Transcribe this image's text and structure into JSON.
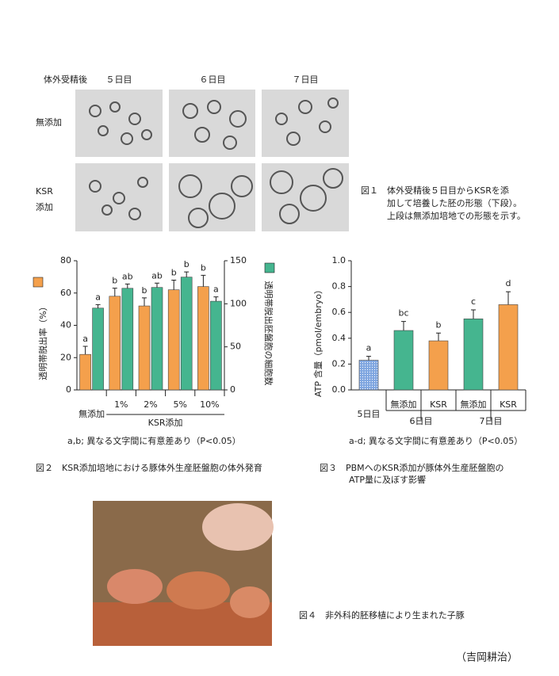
{
  "figure1": {
    "header": "体外受精後",
    "days": [
      "５日目",
      "６日目",
      "７日目"
    ],
    "rows": [
      [
        "無添加"
      ],
      [
        "KSR",
        "添加"
      ]
    ],
    "caption": [
      "図１　体外受精後５日目からKSRを添",
      "加して培養した胚の形態（下段）。",
      "上段は無添加培地での形態を示す。"
    ]
  },
  "chart_data": [
    {
      "type": "bar",
      "ylabel": "透明帯脱出率（%）",
      "y2label": "透明帯脱出胚盤胞の細胞数",
      "categories": [
        "無添加",
        "1%",
        "2%",
        "5%",
        "10%"
      ],
      "group_label": "KSR添加",
      "ylim": [
        0,
        80
      ],
      "yticks": [
        0,
        20,
        40,
        60,
        80
      ],
      "y2lim": [
        0,
        150
      ],
      "y2ticks": [
        0,
        50,
        100,
        150
      ],
      "series": [
        {
          "color": "#f4a04c",
          "values": [
            22,
            58,
            52,
            62,
            64
          ],
          "errors": [
            5,
            5,
            5,
            6,
            7
          ],
          "annotations": [
            "a",
            "b",
            "b",
            "b",
            "b"
          ]
        },
        {
          "color": "#45b58f",
          "axis": "y2",
          "values": [
            95,
            118,
            119,
            131,
            103
          ],
          "errors": [
            4,
            5,
            5,
            6,
            5
          ],
          "annotations": [
            "a",
            "ab",
            "ab",
            "b",
            "a"
          ]
        }
      ],
      "footnote": "a,b; 異なる文字間に有意差あり（P<0.05）",
      "caption": [
        "図２　KSR添加培地における豚体外生産胚盤胞の体外発育"
      ]
    },
    {
      "type": "bar",
      "ylabel": "ATP 含量（pmol/embryo）",
      "categories": [
        "5日目",
        "無添加",
        "KSR",
        "無添加",
        "KSR"
      ],
      "groups": [
        "6日目",
        "7日目"
      ],
      "ylim": [
        0,
        1.0
      ],
      "yticks": [
        {
          "value": 0,
          "label": "0.0"
        },
        0.2,
        0.4,
        0.6,
        0.8,
        {
          "value": 1.0,
          "label": "1.0"
        }
      ],
      "values": [
        0.23,
        0.46,
        0.38,
        0.55,
        0.66
      ],
      "errors": [
        0.03,
        0.07,
        0.06,
        0.07,
        0.1
      ],
      "colors": [
        "#7fa6e0",
        "#45b58f",
        "#f4a04c",
        "#45b58f",
        "#f4a04c"
      ],
      "annotations": [
        "a",
        "bc",
        "b",
        "c",
        "d"
      ],
      "footnote": "a-d; 異なる文字間に有意差あり（P<0.05）",
      "caption": [
        "図３　PBMへのKSR添加が豚体外生産胚盤胞の",
        "ATP量に及ぼす影響"
      ]
    }
  ],
  "figure4": {
    "caption": "図４　非外科的胚移植により生まれた子豚"
  },
  "author": "（吉岡耕治）"
}
